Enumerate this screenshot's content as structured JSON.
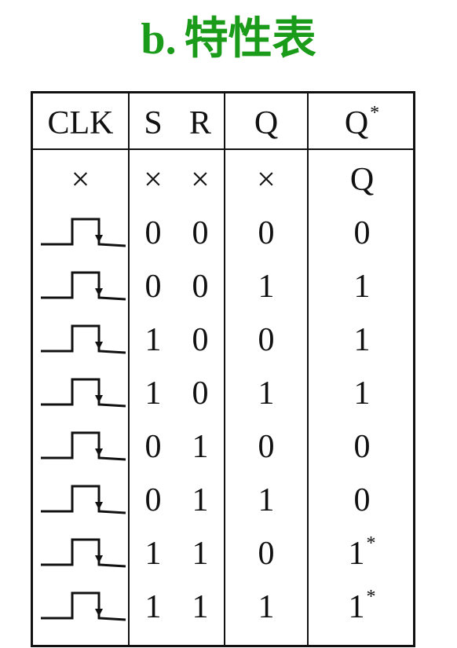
{
  "title": {
    "prefix": "b.",
    "text": "特性表"
  },
  "colors": {
    "title": "#1a9b1a",
    "lines": "#111111"
  },
  "table": {
    "headers": {
      "clk": "CLK",
      "s": "S",
      "r": "R",
      "q": "Q",
      "qnext": "Q",
      "qnext_sup": "*"
    },
    "rows": [
      {
        "clk": "×",
        "s": "×",
        "r": "×",
        "q": "×",
        "qnext": "Q",
        "sup": ""
      },
      {
        "clk": "pulse-falling-edge-icon",
        "s": "0",
        "r": "0",
        "q": "0",
        "qnext": "0",
        "sup": ""
      },
      {
        "clk": "pulse-falling-edge-icon",
        "s": "0",
        "r": "0",
        "q": "1",
        "qnext": "1",
        "sup": ""
      },
      {
        "clk": "pulse-falling-edge-icon",
        "s": "1",
        "r": "0",
        "q": "0",
        "qnext": "1",
        "sup": ""
      },
      {
        "clk": "pulse-falling-edge-icon",
        "s": "1",
        "r": "0",
        "q": "1",
        "qnext": "1",
        "sup": ""
      },
      {
        "clk": "pulse-falling-edge-icon",
        "s": "0",
        "r": "1",
        "q": "0",
        "qnext": "0",
        "sup": ""
      },
      {
        "clk": "pulse-falling-edge-icon",
        "s": "0",
        "r": "1",
        "q": "1",
        "qnext": "0",
        "sup": ""
      },
      {
        "clk": "pulse-falling-edge-icon",
        "s": "1",
        "r": "1",
        "q": "0",
        "qnext": "1",
        "sup": "*"
      },
      {
        "clk": "pulse-falling-edge-icon",
        "s": "1",
        "r": "1",
        "q": "1",
        "qnext": "1",
        "sup": "*"
      }
    ]
  }
}
